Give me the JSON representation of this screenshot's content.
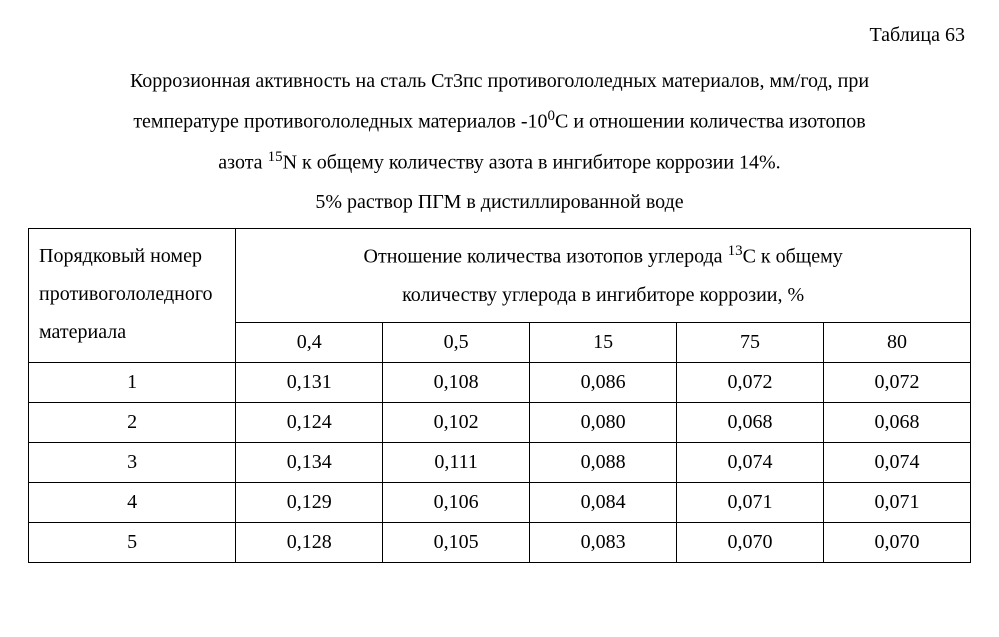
{
  "table_number": "Таблица 63",
  "caption": {
    "line1_a": "Коррозионная активность на сталь Ст3пс противогололедных материалов, мм/год, при",
    "line2_a": "температуре противогололедных материалов -10",
    "line2_sup": "0",
    "line2_b": "С и отношении количества изотопов",
    "line3_a": "азота ",
    "line3_sup": "15",
    "line3_b": "N  к общему количеству азота в ингибиторе коррозии 14%.",
    "line4": "5% раствор ПГМ в дистиллированной воде"
  },
  "table": {
    "row_header": "Порядковый номер противогололедного материала",
    "span_header_a": "Отношение количества изотопов углерода ",
    "span_header_sup": "13",
    "span_header_b": "С к общему",
    "span_header_line2": "количеству углерода в ингибиторе коррозии, %",
    "col_headers": [
      "0,4",
      "0,5",
      "15",
      "75",
      "80"
    ],
    "rows": [
      {
        "id": "1",
        "values": [
          "0,131",
          "0,108",
          "0,086",
          "0,072",
          "0,072"
        ]
      },
      {
        "id": "2",
        "values": [
          "0,124",
          "0,102",
          "0,080",
          "0,068",
          "0,068"
        ]
      },
      {
        "id": "3",
        "values": [
          "0,134",
          "0,111",
          "0,088",
          "0,074",
          "0,074"
        ]
      },
      {
        "id": "4",
        "values": [
          "0,129",
          "0,106",
          "0,084",
          "0,071",
          "0,071"
        ]
      },
      {
        "id": "5",
        "values": [
          "0,128",
          "0,105",
          "0,083",
          "0,070",
          "0,070"
        ]
      }
    ]
  },
  "colors": {
    "bg": "#ffffff",
    "text": "#000000",
    "border": "#000000"
  },
  "typography": {
    "font_family": "Times New Roman",
    "base_fontsize_pt": 15
  }
}
